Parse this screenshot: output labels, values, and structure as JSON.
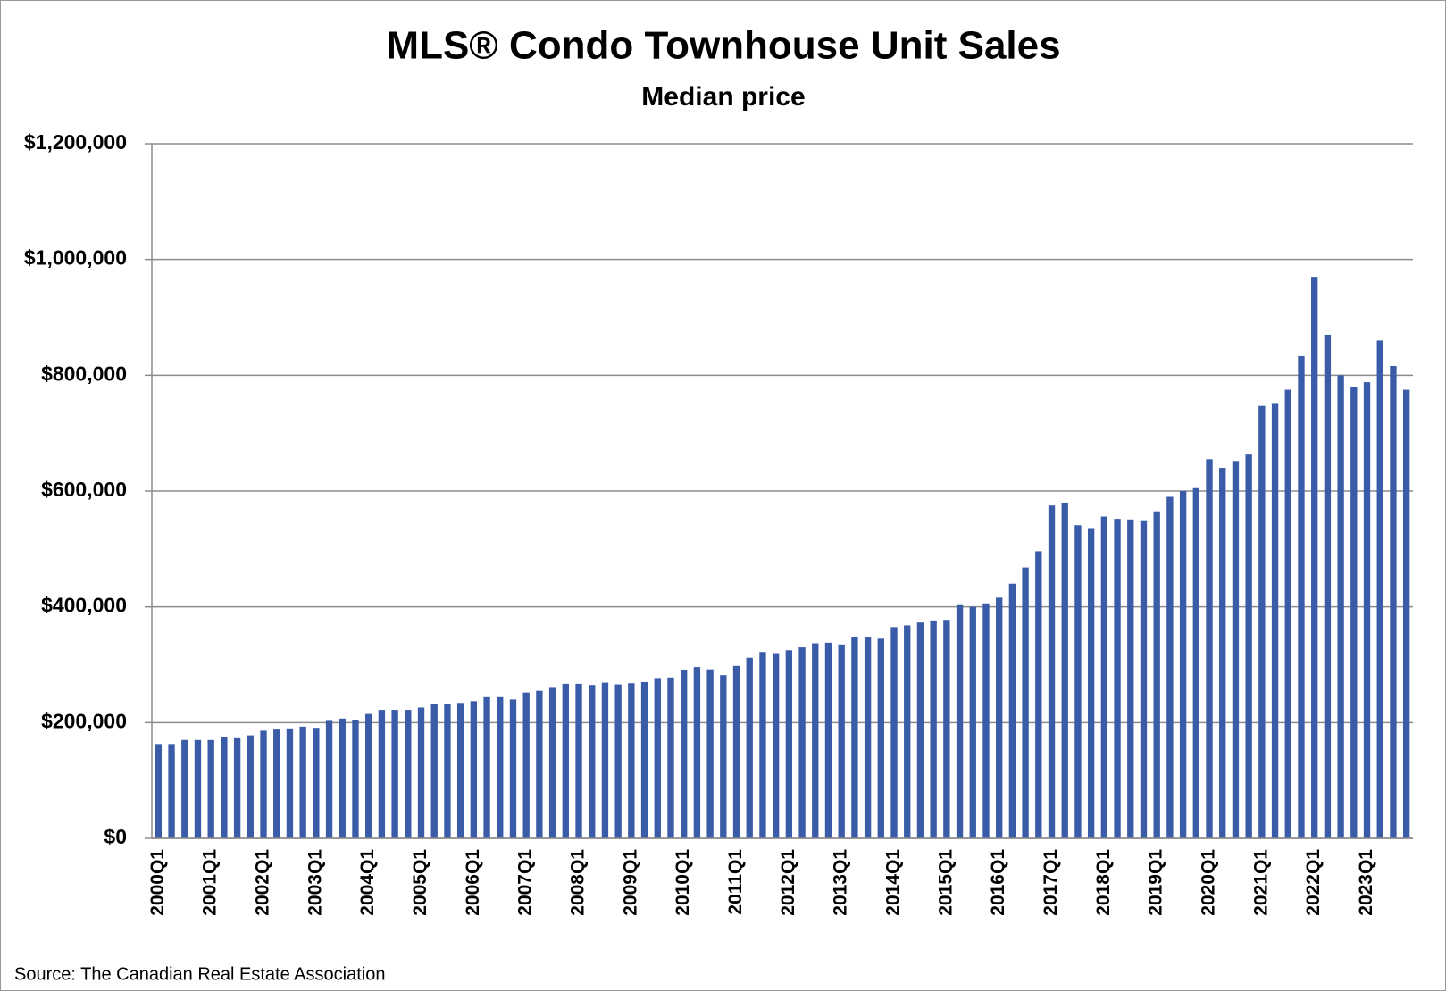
{
  "chart_data": {
    "type": "bar",
    "title": "MLS® Condo Townhouse Unit Sales",
    "subtitle": "Median price",
    "source": "Source: The Canadian Real Estate Association",
    "categories": [
      "2000Q1",
      null,
      null,
      null,
      "2001Q1",
      null,
      null,
      null,
      "2002Q1",
      null,
      null,
      null,
      "2003Q1",
      null,
      null,
      null,
      "2004Q1",
      null,
      null,
      null,
      "2005Q1",
      null,
      null,
      null,
      "2006Q1",
      null,
      null,
      null,
      "2007Q1",
      null,
      null,
      null,
      "2008Q1",
      null,
      null,
      null,
      "2009Q1",
      null,
      null,
      null,
      "2010Q1",
      null,
      null,
      null,
      "2011Q1",
      null,
      null,
      null,
      "2012Q1",
      null,
      null,
      null,
      "2013Q1",
      null,
      null,
      null,
      "2014Q1",
      null,
      null,
      null,
      "2015Q1",
      null,
      null,
      null,
      "2016Q1",
      null,
      null,
      null,
      "2017Q1",
      null,
      null,
      null,
      "2018Q1",
      null,
      null,
      null,
      "2019Q1",
      null,
      null,
      null,
      "2020Q1",
      null,
      null,
      null,
      "2021Q1",
      null,
      null,
      null,
      "2022Q1",
      null,
      null,
      null,
      "2023Q1",
      null,
      null,
      null
    ],
    "values": [
      163000,
      163000,
      170000,
      170000,
      170000,
      175000,
      173000,
      178000,
      186000,
      188000,
      190000,
      193000,
      191000,
      203000,
      207000,
      205000,
      215000,
      222000,
      222000,
      222000,
      226000,
      232000,
      232000,
      234000,
      237000,
      244000,
      244000,
      240000,
      252000,
      255000,
      260000,
      267000,
      267000,
      265000,
      269000,
      266000,
      268000,
      270000,
      277000,
      278000,
      290000,
      296000,
      292000,
      282000,
      298000,
      312000,
      322000,
      320000,
      325000,
      330000,
      337000,
      338000,
      335000,
      348000,
      347000,
      345000,
      365000,
      368000,
      373000,
      375000,
      376000,
      403000,
      400000,
      406000,
      416000,
      440000,
      468000,
      496000,
      575000,
      580000,
      541000,
      536000,
      556000,
      552000,
      551000,
      548000,
      565000,
      590000,
      600000,
      605000,
      655000,
      640000,
      652000,
      663000,
      747000,
      752000,
      775000,
      833000,
      970000,
      870000,
      800000,
      780000,
      788000,
      860000,
      816000,
      775000
    ],
    "color": "#3a5ca8",
    "ylim": [
      0,
      1200000
    ],
    "yticks": [
      {
        "value": 0,
        "label": "$0"
      },
      {
        "value": 200000,
        "label": "$200,000"
      },
      {
        "value": 400000,
        "label": "$400,000"
      },
      {
        "value": 600000,
        "label": "$600,000"
      },
      {
        "value": 800000,
        "label": "$800,000"
      },
      {
        "value": 1000000,
        "label": "$1,000,000"
      },
      {
        "value": 1200000,
        "label": "$1,200,000"
      }
    ],
    "grid": true
  }
}
